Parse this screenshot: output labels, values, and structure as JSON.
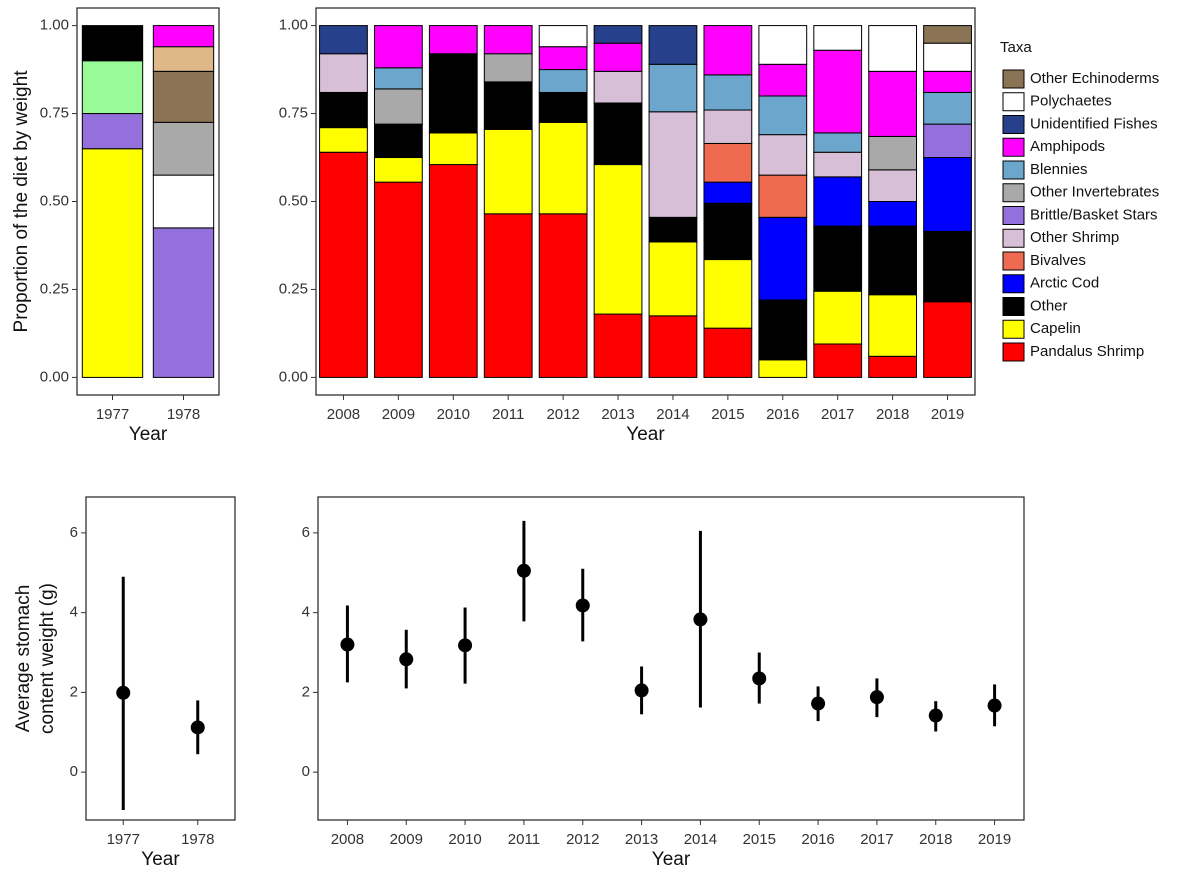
{
  "chart_data": [
    {
      "type": "bar",
      "stacked": true,
      "xlabel": "Year",
      "ylabel": "Proportion of the diet by weight",
      "categories": [
        "1977",
        "1978"
      ],
      "ylim": [
        -0.05,
        1.05
      ],
      "yticks": [
        {
          "value": 0,
          "label": "0.00"
        },
        0.25,
        {
          "value": 0.5,
          "label": "0.50"
        },
        0.75,
        {
          "value": 1,
          "label": "1.00"
        }
      ],
      "series": [
        {
          "color": "#ffff00",
          "values": [
            0.65,
            null
          ]
        },
        {
          "color": "#9370db",
          "values": [
            0.1,
            0.425
          ]
        },
        {
          "color": "#98fb98",
          "values": [
            0.15,
            null
          ]
        },
        {
          "color": "#000000",
          "values": [
            0.1,
            null
          ]
        },
        {
          "color": "#ffffff",
          "values": [
            null,
            0.15
          ]
        },
        {
          "color": "#a9a9a9",
          "values": [
            null,
            0.15
          ]
        },
        {
          "color": "#8b7355",
          "values": [
            null,
            0.145
          ]
        },
        {
          "color": "#deb887",
          "values": [
            null,
            0.07
          ]
        },
        {
          "color": "#ff00ff",
          "values": [
            null,
            0.06
          ]
        }
      ]
    },
    {
      "type": "bar",
      "stacked": true,
      "xlabel": "Year",
      "legend_title": "Taxa",
      "legend": "right",
      "categories": [
        "2008",
        "2009",
        "2010",
        "2011",
        "2012",
        "2013",
        "2014",
        "2015",
        "2016",
        "2017",
        "2018",
        "2019"
      ],
      "ylim": [
        -0.05,
        1.05
      ],
      "yticks": [
        {
          "value": 0,
          "label": "0.00"
        },
        0.25,
        {
          "value": 0.5,
          "label": "0.50"
        },
        0.75,
        {
          "value": 1,
          "label": "1.00"
        }
      ],
      "series": [
        {
          "name": "Pandalus Shrimp",
          "color": "#ff0000",
          "values": [
            0.64,
            0.555,
            0.605,
            0.465,
            0.465,
            0.18,
            0.175,
            0.14,
            null,
            0.095,
            0.06,
            0.215
          ]
        },
        {
          "name": "Capelin",
          "color": "#ffff00",
          "values": [
            0.07,
            0.07,
            0.09,
            0.24,
            0.26,
            0.425,
            0.21,
            0.195,
            0.05,
            0.15,
            0.175,
            null
          ]
        },
        {
          "name": "Other",
          "color": "#000000",
          "values": [
            0.1,
            0.095,
            0.225,
            0.135,
            0.085,
            0.175,
            0.07,
            0.16,
            0.17,
            0.185,
            0.195,
            0.2
          ]
        },
        {
          "name": "Arctic Cod",
          "color": "#0000ff",
          "values": [
            null,
            null,
            null,
            null,
            null,
            null,
            null,
            0.06,
            0.235,
            0.14,
            0.07,
            0.21
          ]
        },
        {
          "name": "Bivalves",
          "color": "#ee6a50",
          "values": [
            null,
            null,
            null,
            null,
            null,
            null,
            null,
            0.11,
            0.12,
            null,
            null,
            null
          ]
        },
        {
          "name": "Other Shrimp",
          "color": "#d8bfd8",
          "values": [
            0.11,
            null,
            null,
            null,
            null,
            0.09,
            0.3,
            0.095,
            0.115,
            0.07,
            0.09,
            null
          ]
        },
        {
          "name": "Brittle/Basket Stars",
          "color": "#9370db",
          "values": [
            null,
            null,
            null,
            null,
            null,
            null,
            null,
            null,
            null,
            null,
            null,
            0.095
          ]
        },
        {
          "name": "Other Invertebrates",
          "color": "#a9a9a9",
          "values": [
            null,
            0.1,
            null,
            0.08,
            null,
            null,
            null,
            null,
            null,
            null,
            0.095,
            null
          ]
        },
        {
          "name": "Blennies",
          "color": "#6ca6cd",
          "values": [
            null,
            0.06,
            null,
            null,
            0.065,
            null,
            0.135,
            0.1,
            0.11,
            0.055,
            null,
            0.09
          ]
        },
        {
          "name": "Amphipods",
          "color": "#ff00ff",
          "values": [
            null,
            0.12,
            0.08,
            0.08,
            0.065,
            0.08,
            null,
            0.14,
            0.09,
            0.235,
            0.185,
            0.06
          ]
        },
        {
          "name": "Unidentified Fishes",
          "color": "#27408b",
          "values": [
            0.08,
            null,
            null,
            null,
            null,
            0.05,
            0.11,
            null,
            null,
            null,
            null,
            null
          ]
        },
        {
          "name": "Polychaetes",
          "color": "#ffffff",
          "values": [
            null,
            null,
            null,
            null,
            0.06,
            null,
            null,
            null,
            0.11,
            0.07,
            0.13,
            0.08
          ]
        },
        {
          "name": "Other Echinoderms",
          "color": "#8b7355",
          "values": [
            null,
            null,
            null,
            null,
            null,
            null,
            null,
            null,
            null,
            null,
            null,
            0.05
          ]
        }
      ]
    },
    {
      "type": "errorbar",
      "xlabel": "Year",
      "ylabel": [
        "Average stomach",
        "content weight (g)"
      ],
      "categories": [
        "1977",
        "1978"
      ],
      "ylim": [
        -1.2,
        6.9
      ],
      "yticks": [
        0,
        2,
        4,
        6
      ],
      "color": "#000000",
      "values": [
        1.99,
        1.12
      ],
      "lower": [
        -0.95,
        0.45
      ],
      "upper": [
        4.9,
        1.8
      ]
    },
    {
      "type": "errorbar",
      "xlabel": "Year",
      "categories": [
        "2008",
        "2009",
        "2010",
        "2011",
        "2012",
        "2013",
        "2014",
        "2015",
        "2016",
        "2017",
        "2018",
        "2019"
      ],
      "ylim": [
        -1.2,
        6.9
      ],
      "yticks": [
        0,
        2,
        4,
        6
      ],
      "color": "#000000",
      "values": [
        3.2,
        2.83,
        3.18,
        5.05,
        4.18,
        2.05,
        3.83,
        2.35,
        1.72,
        1.88,
        1.42,
        1.67
      ],
      "lower": [
        2.25,
        2.1,
        2.22,
        3.78,
        3.28,
        1.45,
        1.62,
        1.72,
        1.28,
        1.38,
        1.02,
        1.15
      ],
      "upper": [
        4.18,
        3.57,
        4.13,
        6.3,
        5.1,
        2.65,
        6.05,
        3.0,
        2.15,
        2.35,
        1.78,
        2.2
      ]
    }
  ]
}
